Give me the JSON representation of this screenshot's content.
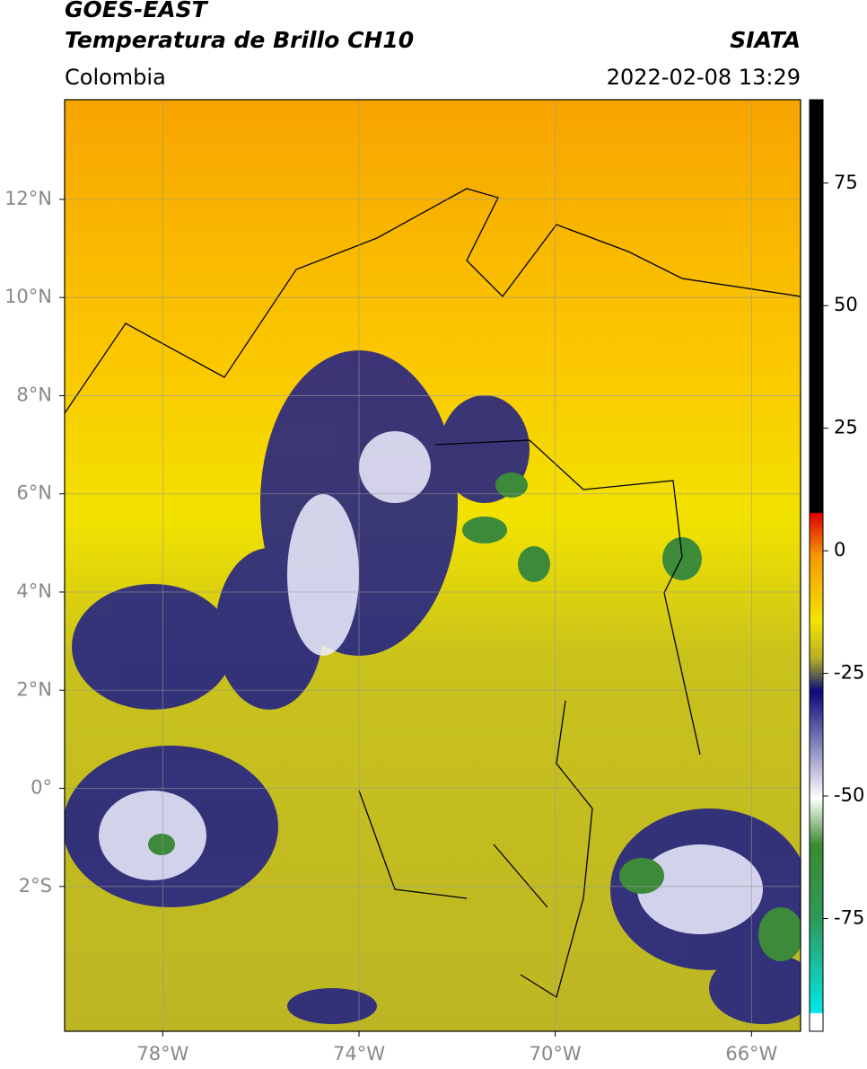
{
  "header": {
    "title": "GOES-EAST",
    "subtitle": "Temperatura de Brillo CH10",
    "source": "SIATA",
    "region": "Colombia",
    "datetime": "2022-02-08 13:29"
  },
  "map": {
    "lonlim": [
      -80,
      -65
    ],
    "latlim": [
      -4.95,
      14.03
    ],
    "lonticks": [
      {
        "value": -78,
        "label": "78°W"
      },
      {
        "value": -74,
        "label": "74°W"
      },
      {
        "value": -70,
        "label": "70°W"
      },
      {
        "value": -66,
        "label": "66°W"
      }
    ],
    "latticks": [
      {
        "value": 12,
        "label": "12°N"
      },
      {
        "value": 10,
        "label": "10°N"
      },
      {
        "value": 8,
        "label": "8°N"
      },
      {
        "value": 6,
        "label": "6°N"
      },
      {
        "value": 4,
        "label": "4°N"
      },
      {
        "value": 2,
        "label": "2°N"
      },
      {
        "value": 0,
        "label": "0°"
      },
      {
        "value": -2,
        "label": "2°S"
      }
    ],
    "grid": true
  },
  "colorbar": {
    "lim": [
      -98,
      92
    ],
    "ticks": [
      75,
      50,
      25,
      0,
      -25,
      -50,
      -75
    ]
  }
}
